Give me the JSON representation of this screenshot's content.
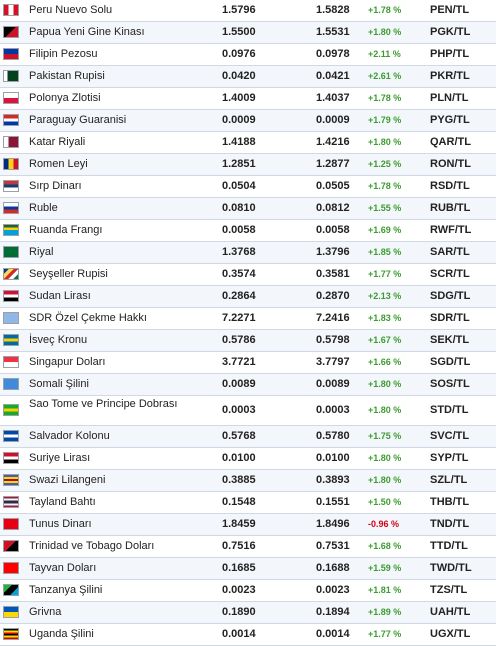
{
  "rows": [
    {
      "name": "Peru Nuevo Solu",
      "buy": "1.5796",
      "sell": "1.5828",
      "change": "+1.78 %",
      "dir": "up",
      "code": "PEN/TL",
      "flag": "peru-flag-icon",
      "colors": [
        "#d91023",
        "#ffffff",
        "#d91023"
      ],
      "flagdir": "v"
    },
    {
      "name": "Papua Yeni Gine Kinası",
      "buy": "1.5500",
      "sell": "1.5531",
      "change": "+1.80 %",
      "dir": "up",
      "code": "PGK/TL",
      "flag": "papua-new-guinea-flag-icon",
      "colors": [
        "#000000",
        "#ce1126"
      ],
      "flagdir": "d"
    },
    {
      "name": "Filipin Pezosu",
      "buy": "0.0976",
      "sell": "0.0978",
      "change": "+2.11 %",
      "dir": "up",
      "code": "PHP/TL",
      "flag": "philippines-flag-icon",
      "colors": [
        "#0038a8",
        "#ce1126"
      ],
      "flagdir": "h"
    },
    {
      "name": "Pakistan Rupisi",
      "buy": "0.0420",
      "sell": "0.0421",
      "change": "+2.61 %",
      "dir": "up",
      "code": "PKR/TL",
      "flag": "pakistan-flag-icon",
      "colors": [
        "#ffffff",
        "#01411c",
        "#01411c",
        "#01411c"
      ],
      "flagdir": "v"
    },
    {
      "name": "Polonya Zlotisi",
      "buy": "1.4009",
      "sell": "1.4037",
      "change": "+1.78 %",
      "dir": "up",
      "code": "PLN/TL",
      "flag": "poland-flag-icon",
      "colors": [
        "#ffffff",
        "#dc143c"
      ],
      "flagdir": "h"
    },
    {
      "name": "Paraguay Guaranisi",
      "buy": "0.0009",
      "sell": "0.0009",
      "change": "+1.79 %",
      "dir": "up",
      "code": "PYG/TL",
      "flag": "paraguay-flag-icon",
      "colors": [
        "#d52b1e",
        "#ffffff",
        "#0038a8"
      ],
      "flagdir": "h"
    },
    {
      "name": "Katar Riyali",
      "buy": "1.4188",
      "sell": "1.4216",
      "change": "+1.80 %",
      "dir": "up",
      "code": "QAR/TL",
      "flag": "qatar-flag-icon",
      "colors": [
        "#ffffff",
        "#8a1538",
        "#8a1538"
      ],
      "flagdir": "v"
    },
    {
      "name": "Romen Leyi",
      "buy": "1.2851",
      "sell": "1.2877",
      "change": "+1.25 %",
      "dir": "up",
      "code": "RON/TL",
      "flag": "romania-flag-icon",
      "colors": [
        "#002b7f",
        "#fcd116",
        "#ce1126"
      ],
      "flagdir": "v"
    },
    {
      "name": "Sırp Dinarı",
      "buy": "0.0504",
      "sell": "0.0505",
      "change": "+1.78 %",
      "dir": "up",
      "code": "RSD/TL",
      "flag": "serbia-flag-icon",
      "colors": [
        "#c6363c",
        "#0c4076",
        "#ffffff"
      ],
      "flagdir": "h"
    },
    {
      "name": "Ruble",
      "buy": "0.0810",
      "sell": "0.0812",
      "change": "+1.55 %",
      "dir": "up",
      "code": "RUB/TL",
      "flag": "russia-flag-icon",
      "colors": [
        "#ffffff",
        "#0039a6",
        "#d52b1e"
      ],
      "flagdir": "h"
    },
    {
      "name": "Ruanda Frangı",
      "buy": "0.0058",
      "sell": "0.0058",
      "change": "+1.69 %",
      "dir": "up",
      "code": "RWF/TL",
      "flag": "rwanda-flag-icon",
      "colors": [
        "#20603d",
        "#fad201",
        "#00a1de",
        "#00a1de"
      ],
      "flagdir": "h"
    },
    {
      "name": "Riyal",
      "buy": "1.3768",
      "sell": "1.3796",
      "change": "+1.85 %",
      "dir": "up",
      "code": "SAR/TL",
      "flag": "saudi-arabia-flag-icon",
      "colors": [
        "#006c35",
        "#006c35"
      ],
      "flagdir": "h"
    },
    {
      "name": "Seyşeller Rupisi",
      "buy": "0.3574",
      "sell": "0.3581",
      "change": "+1.77 %",
      "dir": "up",
      "code": "SCR/TL",
      "flag": "seychelles-flag-icon",
      "colors": [
        "#003f87",
        "#fcd856",
        "#d62828",
        "#ffffff",
        "#007a3d"
      ],
      "flagdir": "d"
    },
    {
      "name": "Sudan Lirası",
      "buy": "0.2864",
      "sell": "0.2870",
      "change": "+2.13 %",
      "dir": "up",
      "code": "SDG/TL",
      "flag": "sudan-flag-icon",
      "colors": [
        "#d21034",
        "#ffffff",
        "#000000"
      ],
      "flagdir": "h"
    },
    {
      "name": "SDR Özel Çekme Hakkı",
      "buy": "7.2271",
      "sell": "7.2416",
      "change": "+1.83 %",
      "dir": "up",
      "code": "SDR/TL",
      "flag": "sdr-flag-icon",
      "colors": [
        "#8fb8e6",
        "#8fb8e6"
      ],
      "flagdir": "h"
    },
    {
      "name": "İsveç Kronu",
      "buy": "0.5786",
      "sell": "0.5798",
      "change": "+1.67 %",
      "dir": "up",
      "code": "SEK/TL",
      "flag": "sweden-flag-icon",
      "colors": [
        "#006aa7",
        "#fecc00",
        "#006aa7"
      ],
      "flagdir": "h"
    },
    {
      "name": "Singapur Doları",
      "buy": "3.7721",
      "sell": "3.7797",
      "change": "+1.66 %",
      "dir": "up",
      "code": "SGD/TL",
      "flag": "singapore-flag-icon",
      "colors": [
        "#ef3340",
        "#ffffff"
      ],
      "flagdir": "h"
    },
    {
      "name": "Somali Şilini",
      "buy": "0.0089",
      "sell": "0.0089",
      "change": "+1.80 %",
      "dir": "up",
      "code": "SOS/TL",
      "flag": "somalia-flag-icon",
      "colors": [
        "#4189dd",
        "#4189dd"
      ],
      "flagdir": "h"
    },
    {
      "name": "Sao Tome ve Principe Dobrası",
      "buy": "0.0003",
      "sell": "0.0003",
      "change": "+1.80 %",
      "dir": "up",
      "code": "STD/TL",
      "flag": "sao-tome-flag-icon",
      "colors": [
        "#12ad2b",
        "#ffce00",
        "#12ad2b"
      ],
      "flagdir": "h",
      "tall": true
    },
    {
      "name": "Salvador Kolonu",
      "buy": "0.5768",
      "sell": "0.5780",
      "change": "+1.75 %",
      "dir": "up",
      "code": "SVC/TL",
      "flag": "el-salvador-flag-icon",
      "colors": [
        "#0047ab",
        "#ffffff",
        "#0047ab"
      ],
      "flagdir": "h"
    },
    {
      "name": "Suriye Lirası",
      "buy": "0.0100",
      "sell": "0.0100",
      "change": "+1.80 %",
      "dir": "up",
      "code": "SYP/TL",
      "flag": "syria-flag-icon",
      "colors": [
        "#ce1126",
        "#ffffff",
        "#000000"
      ],
      "flagdir": "h"
    },
    {
      "name": "Swazi Lilangeni",
      "buy": "0.3885",
      "sell": "0.3893",
      "change": "+1.80 %",
      "dir": "up",
      "code": "SZL/TL",
      "flag": "eswatini-flag-icon",
      "colors": [
        "#3e5eb9",
        "#ffd900",
        "#b10c0c",
        "#ffd900",
        "#3e5eb9"
      ],
      "flagdir": "h"
    },
    {
      "name": "Tayland Bahtı",
      "buy": "0.1548",
      "sell": "0.1551",
      "change": "+1.50 %",
      "dir": "up",
      "code": "THB/TL",
      "flag": "thailand-flag-icon",
      "colors": [
        "#a51931",
        "#f4f5f8",
        "#2d2a4a",
        "#2d2a4a",
        "#f4f5f8",
        "#a51931"
      ],
      "flagdir": "h"
    },
    {
      "name": "Tunus Dinarı",
      "buy": "1.8459",
      "sell": "1.8496",
      "change": "-0.96 %",
      "dir": "down",
      "code": "TND/TL",
      "flag": "tunisia-flag-icon",
      "colors": [
        "#e70013",
        "#e70013"
      ],
      "flagdir": "h"
    },
    {
      "name": "Trinidad ve Tobago Doları",
      "buy": "0.7516",
      "sell": "0.7531",
      "change": "+1.68 %",
      "dir": "up",
      "code": "TTD/TL",
      "flag": "trinidad-tobago-flag-icon",
      "colors": [
        "#ce1126",
        "#000000"
      ],
      "flagdir": "d"
    },
    {
      "name": "Tayvan Doları",
      "buy": "0.1685",
      "sell": "0.1688",
      "change": "+1.59 %",
      "dir": "up",
      "code": "TWD/TL",
      "flag": "taiwan-flag-icon",
      "colors": [
        "#fe0000",
        "#fe0000"
      ],
      "flagdir": "h"
    },
    {
      "name": "Tanzanya Şilini",
      "buy": "0.0023",
      "sell": "0.0023",
      "change": "+1.81 %",
      "dir": "up",
      "code": "TZS/TL",
      "flag": "tanzania-flag-icon",
      "colors": [
        "#1eb53a",
        "#000000",
        "#00a3dd"
      ],
      "flagdir": "d"
    },
    {
      "name": "Grivna",
      "buy": "0.1890",
      "sell": "0.1894",
      "change": "+1.89 %",
      "dir": "up",
      "code": "UAH/TL",
      "flag": "ukraine-flag-icon",
      "colors": [
        "#0057b7",
        "#ffd700"
      ],
      "flagdir": "h"
    },
    {
      "name": "Uganda Şilini",
      "buy": "0.0014",
      "sell": "0.0014",
      "change": "+1.77 %",
      "dir": "up",
      "code": "UGX/TL",
      "flag": "uganda-flag-icon",
      "colors": [
        "#000000",
        "#fcdc04",
        "#d90000",
        "#000000",
        "#fcdc04",
        "#d90000"
      ],
      "flagdir": "h"
    }
  ]
}
